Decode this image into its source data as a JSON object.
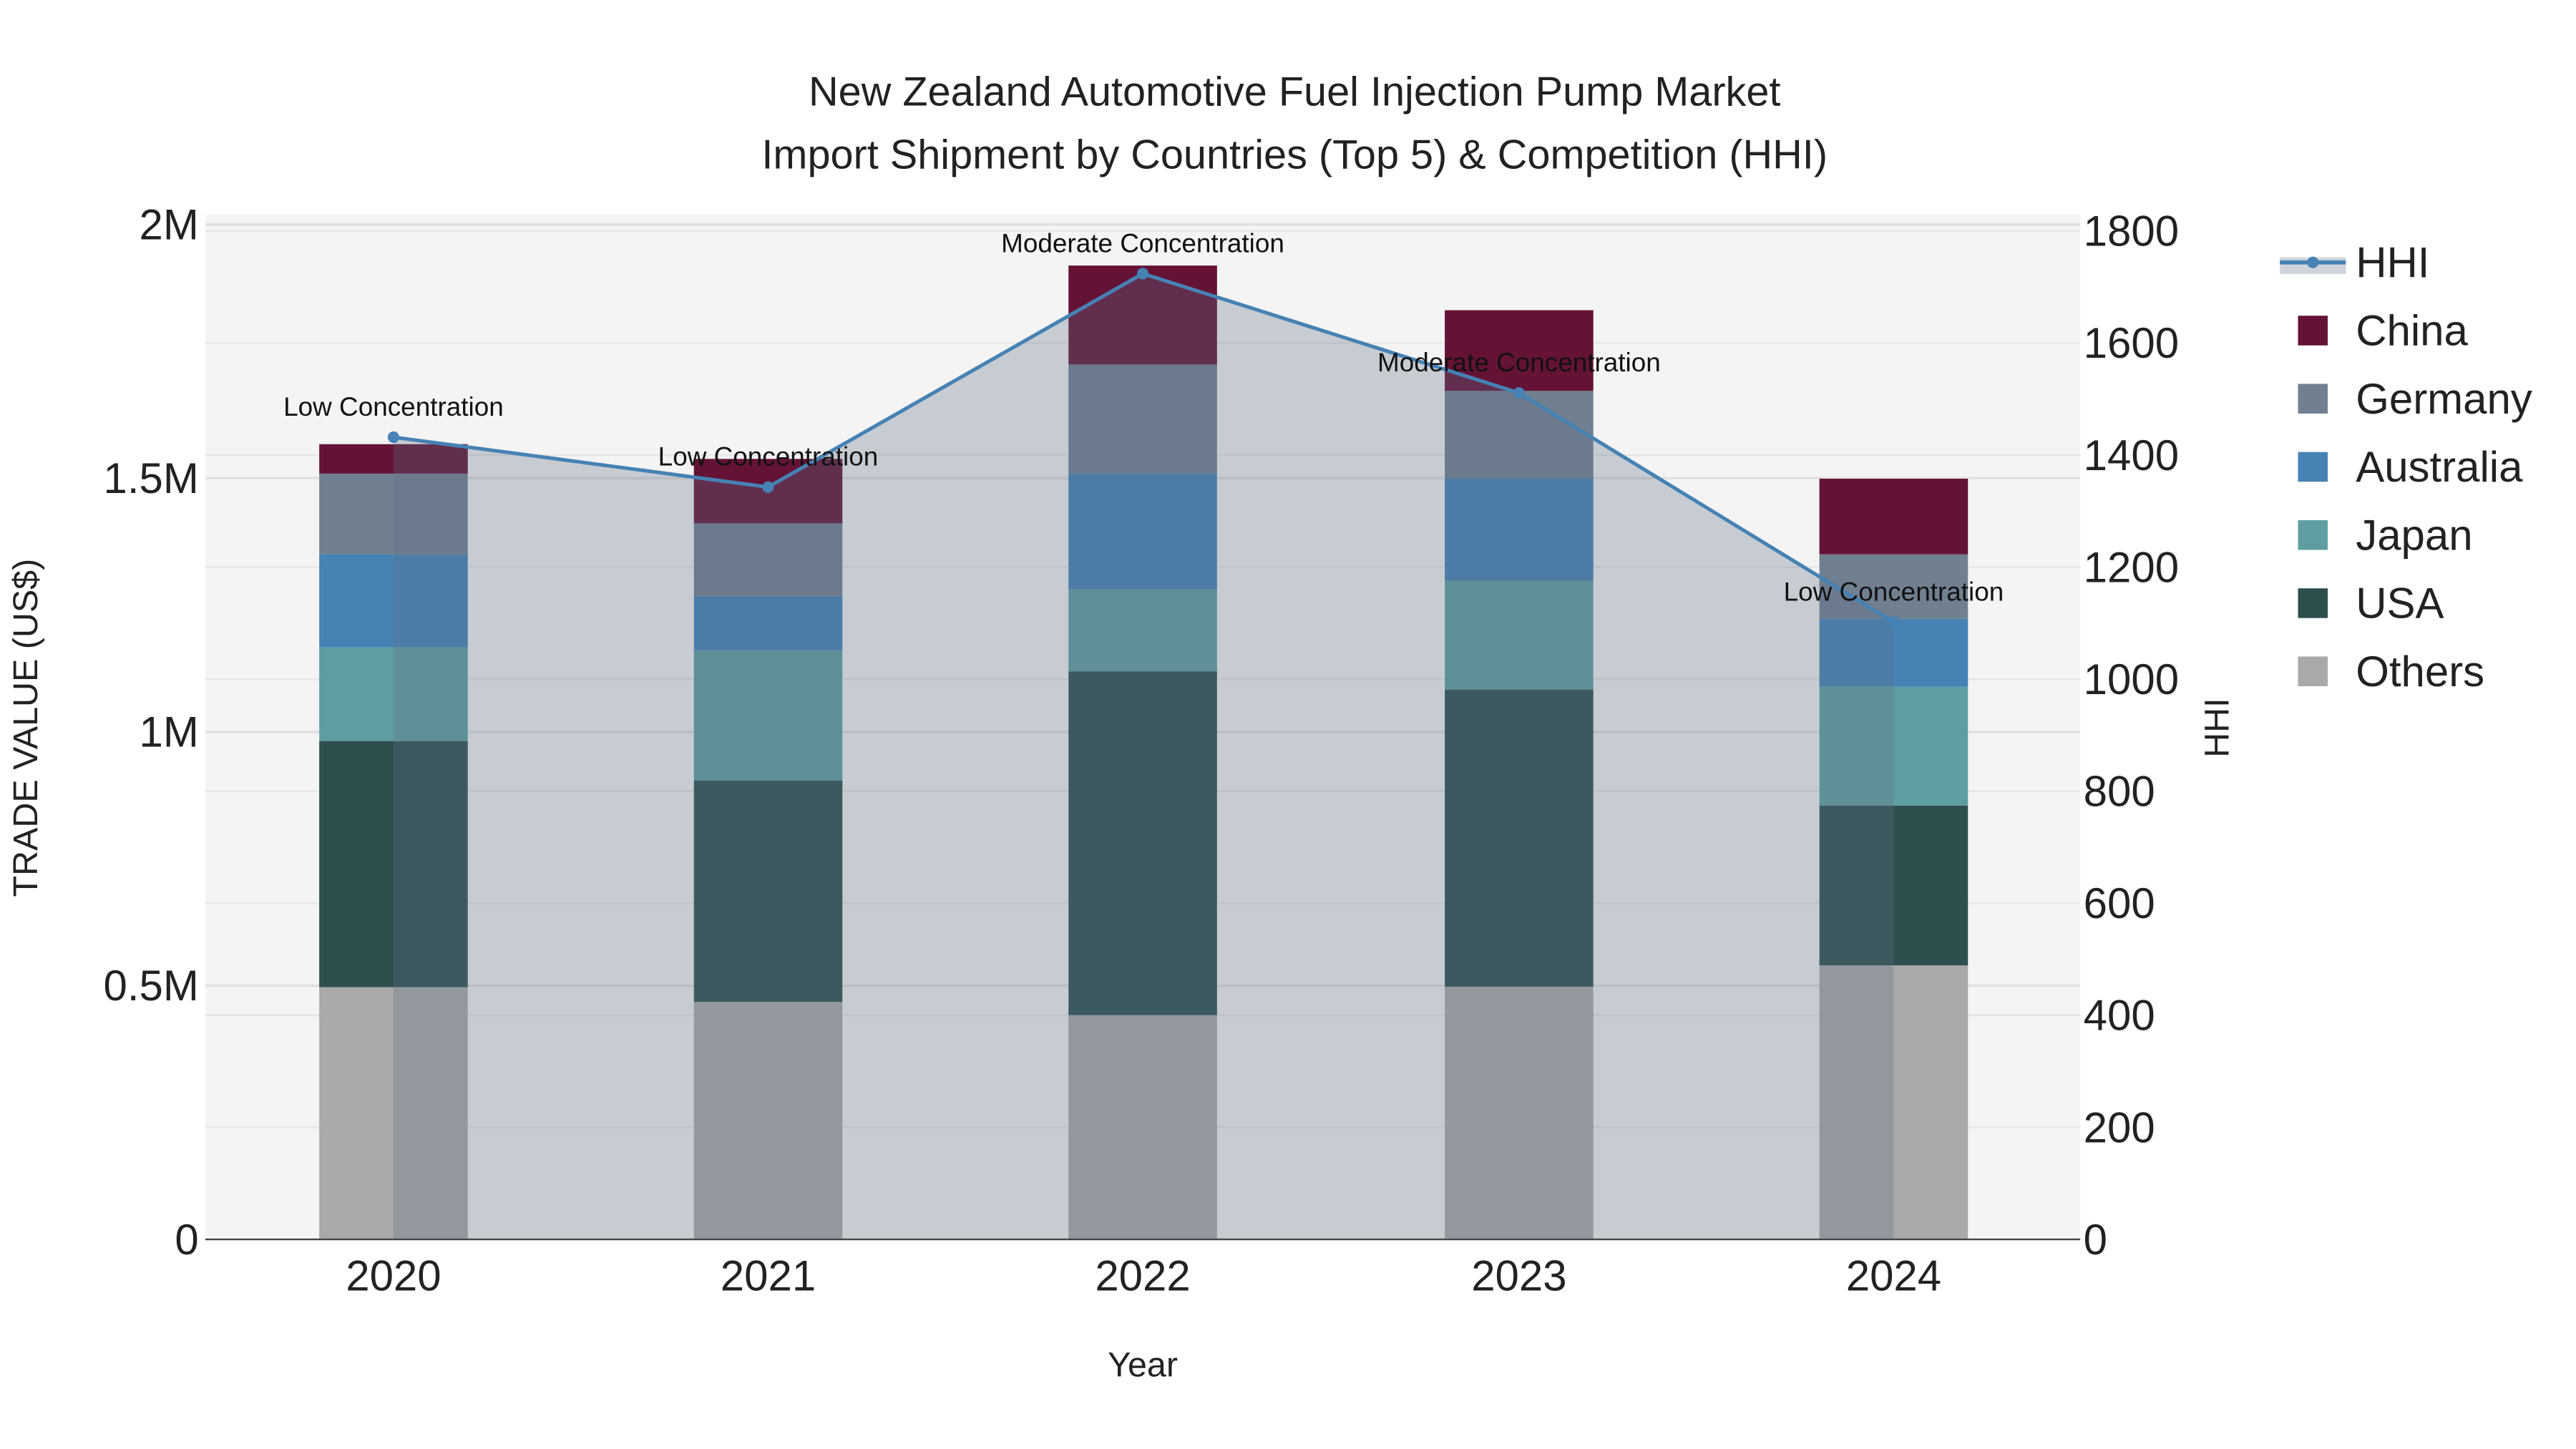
{
  "chart_data": {
    "type": "bar",
    "title_line1": "New Zealand Automotive Fuel Injection Pump Market",
    "title_line2": "Import Shipment by Countries (Top 5) & Competition (HHI)",
    "xlabel": "Year",
    "ylabel": "TRADE VALUE (US$)",
    "y2label": "HHI",
    "categories": [
      "2020",
      "2021",
      "2022",
      "2023",
      "2024"
    ],
    "ylim": [
      0,
      2000000
    ],
    "y2lim": [
      0,
      1800
    ],
    "yticks": [
      {
        "v": 0,
        "label": "0"
      },
      {
        "v": 500000,
        "label": "0.5M"
      },
      {
        "v": 1000000,
        "label": "1M"
      },
      {
        "v": 1500000,
        "label": "1.5M"
      },
      {
        "v": 2000000,
        "label": "2M"
      }
    ],
    "y2ticks": [
      {
        "v": 0,
        "label": "0"
      },
      {
        "v": 200,
        "label": "200"
      },
      {
        "v": 400,
        "label": "400"
      },
      {
        "v": 600,
        "label": "600"
      },
      {
        "v": 800,
        "label": "800"
      },
      {
        "v": 1000,
        "label": "1000"
      },
      {
        "v": 1200,
        "label": "1200"
      },
      {
        "v": 1400,
        "label": "1400"
      },
      {
        "v": 1600,
        "label": "1600"
      },
      {
        "v": 1800,
        "label": "1800"
      }
    ],
    "series": [
      {
        "name": "Others",
        "color": "#a9a9a9",
        "values": [
          497000,
          468000,
          442000,
          498000,
          540000
        ]
      },
      {
        "name": "USA",
        "color": "#2f4f4f",
        "values": [
          485000,
          436000,
          677000,
          585000,
          315000
        ]
      },
      {
        "name": "Japan",
        "color": "#5f9ea0",
        "values": [
          185000,
          257000,
          162000,
          215000,
          234000
        ]
      },
      {
        "name": "Australia",
        "color": "#4682b4",
        "values": [
          183000,
          107000,
          228000,
          201000,
          134000
        ]
      },
      {
        "name": "Germany",
        "color": "#708090",
        "values": [
          159000,
          143000,
          215000,
          173000,
          127000
        ]
      },
      {
        "name": "China",
        "color": "#641236",
        "values": [
          58000,
          127000,
          195000,
          159000,
          149000
        ]
      }
    ],
    "hhi": {
      "name": "HHI",
      "color": "#4682b4",
      "values": [
        1432,
        1343,
        1724,
        1511,
        1102
      ]
    },
    "annotations": [
      "Low Concentration",
      "Low Concentration",
      "Moderate Concentration",
      "Moderate Concentration",
      "Low Concentration"
    ],
    "legend": [
      "HHI",
      "China",
      "Germany",
      "Australia",
      "Japan",
      "USA",
      "Others"
    ],
    "legend_position": "right",
    "grid": true
  }
}
